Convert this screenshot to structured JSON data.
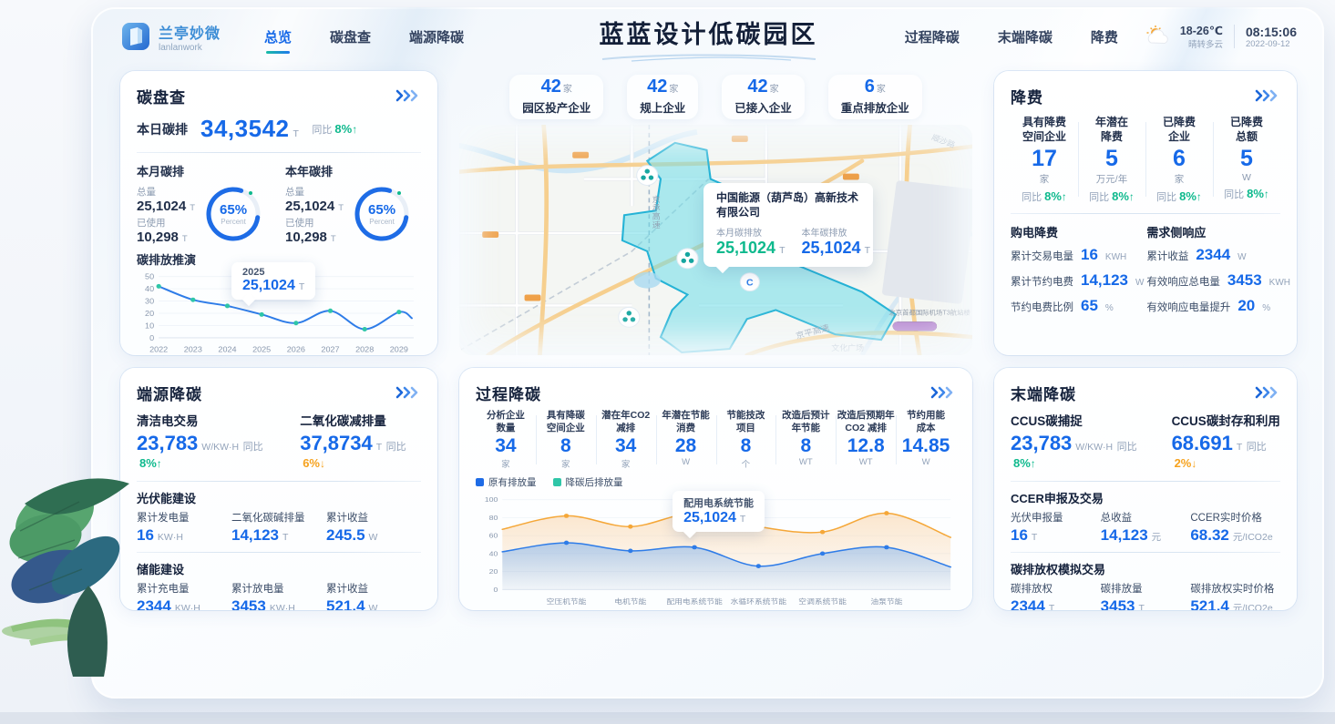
{
  "header": {
    "logo": {
      "name": "兰亭妙微",
      "subtitle": "lanlanwork"
    },
    "nav_left": [
      {
        "label": "总览",
        "active": true
      },
      {
        "label": "碳盘查",
        "active": false
      },
      {
        "label": "端源降碳",
        "active": false
      }
    ],
    "title": "蓝蓝设计低碳园区",
    "nav_right": [
      {
        "label": "过程降碳",
        "active": false
      },
      {
        "label": "末端降碳",
        "active": false
      },
      {
        "label": "降费",
        "active": false
      }
    ],
    "weather": {
      "temp": "18-26℃",
      "desc": "晴转多云",
      "time": "08:15:06",
      "date": "2022-09-12"
    }
  },
  "carbon_check": {
    "title": "碳盘查",
    "today": {
      "label": "本日碳排",
      "value": "34,3542",
      "unit": "T",
      "yoy_label": "同比",
      "yoy_value": "8%",
      "arrow": "↑"
    },
    "gauges": [
      {
        "label": "本月碳排",
        "total_label": "总量",
        "total": "25,1024",
        "total_unit": "T",
        "used_label": "已使用",
        "used": "10,298",
        "used_unit": "T",
        "percent_text": "65%",
        "percent_sub": "Percent"
      },
      {
        "label": "本年碳排",
        "total_label": "总量",
        "total": "25,1024",
        "total_unit": "T",
        "used_label": "已使用",
        "used": "10,298",
        "used_unit": "T",
        "percent_text": "65%",
        "percent_sub": "Percent"
      }
    ],
    "chart_title": "碳排放推演"
  },
  "proj_tooltip": {
    "year": "2025",
    "value": "25,1024",
    "unit": "T"
  },
  "map": {
    "stats": [
      {
        "value": "42",
        "unit": "家",
        "label": "园区投产企业"
      },
      {
        "value": "42",
        "unit": "家",
        "label": "规上企业"
      },
      {
        "value": "42",
        "unit": "家",
        "label": "已接入企业"
      },
      {
        "value": "6",
        "unit": "家",
        "label": "重点排放企业"
      }
    ],
    "tooltip": {
      "company": "中国能源（葫芦岛）高新技术有限公司",
      "month_label": "本月碳排放",
      "month_value": "25,1024",
      "month_unit": "T",
      "year_label": "本年碳排放",
      "year_value": "25,1024",
      "year_unit": "T"
    },
    "labels": {
      "road1": "京承高速",
      "road2": "京平高速",
      "place1": "文化广场",
      "road3": "顺沙路",
      "place2": "北京首都国际机场T3航站楼"
    }
  },
  "cost_reduction": {
    "title": "降费",
    "stats": [
      {
        "label1": "具有降费",
        "label2": "空间企业",
        "value": "17",
        "unit": "家",
        "yoy_label": "同比",
        "yoy_value": "8%",
        "arrow": "↑"
      },
      {
        "label1": "年潜在",
        "label2": "降费",
        "value": "5",
        "unit": "万元/年",
        "yoy_label": "同比",
        "yoy_value": "8%",
        "arrow": "↑"
      },
      {
        "label1": "已降费",
        "label2": "企业",
        "value": "6",
        "unit": "家",
        "yoy_label": "同比",
        "yoy_value": "8%",
        "arrow": "↑"
      },
      {
        "label1": "已降费",
        "label2": "总额",
        "value": "5",
        "unit": "W",
        "yoy_label": "同比",
        "yoy_value": "8%",
        "arrow": "↑"
      }
    ],
    "purchase": {
      "title": "购电降费",
      "rows": [
        {
          "label": "累计交易电量",
          "value": "16",
          "unit": "KWH"
        },
        {
          "label": "累计节约电费",
          "value": "14,123",
          "unit": "W"
        },
        {
          "label": "节约电费比例",
          "value": "65",
          "unit": "%"
        }
      ]
    },
    "demand": {
      "title": "需求侧响应",
      "rows": [
        {
          "label": "累计收益",
          "value": "2344",
          "unit": "W"
        },
        {
          "label": "有效响应总电量",
          "value": "3453",
          "unit": "KWH"
        },
        {
          "label": "有效响应电量提升",
          "value": "20",
          "unit": "%"
        }
      ]
    }
  },
  "source_reduction": {
    "title": "端源降碳",
    "highlights": [
      {
        "label": "清洁电交易",
        "value": "23,783",
        "unit": "W/KW·H",
        "yoy_label": "同比",
        "yoy_value": "8%",
        "arrow": "↑"
      },
      {
        "label": "二氧化碳减排量",
        "value": "37,8734",
        "unit": "T",
        "yoy_label": "同比",
        "yoy_value": "6%",
        "arrow": "↓"
      }
    ],
    "sections": [
      {
        "title": "光伏能建设",
        "cols": [
          {
            "label": "累计发电量",
            "value": "16",
            "unit": "KW·H"
          },
          {
            "label": "二氧化碳碱排量",
            "value": "14,123",
            "unit": "T"
          },
          {
            "label": "累计收益",
            "value": "245.5",
            "unit": "W"
          }
        ]
      },
      {
        "title": "储能建设",
        "cols": [
          {
            "label": "累计充电量",
            "value": "2344",
            "unit": "KW·H"
          },
          {
            "label": "累计放电量",
            "value": "3453",
            "unit": "KW·H"
          },
          {
            "label": "累计收益",
            "value": "521.4",
            "unit": "W"
          }
        ]
      }
    ]
  },
  "process_reduction": {
    "title": "过程降碳",
    "stats": [
      {
        "label1": "分析企业",
        "label2": "数量",
        "value": "34",
        "unit": "家"
      },
      {
        "label1": "具有降碳",
        "label2": "空间企业",
        "value": "8",
        "unit": "家"
      },
      {
        "label1": "潜在年CO2",
        "label2": "减排",
        "value": "34",
        "unit": "家"
      },
      {
        "label1": "年潜在节能",
        "label2": "消费",
        "value": "28",
        "unit": "W"
      },
      {
        "label1": "节能技改",
        "label2": "项目",
        "value": "8",
        "unit": "个"
      },
      {
        "label1": "改造后预计",
        "label2": "年节能",
        "value": "8",
        "unit": "WT"
      },
      {
        "label1": "改造后预期年",
        "label2": "CO2 减排",
        "value": "12.8",
        "unit": "WT"
      },
      {
        "label1": "节约用能",
        "label2": "成本",
        "value": "14.85",
        "unit": "W"
      }
    ],
    "tooltip": {
      "title": "配用电系统节能",
      "value": "25,1024",
      "unit": "T"
    }
  },
  "terminal_reduction": {
    "title": "末端降碳",
    "highlights": [
      {
        "label": "CCUS碳捕捉",
        "value": "23,783",
        "unit": "W/KW·H",
        "yoy_label": "同比",
        "yoy_value": "8%",
        "arrow": "↑"
      },
      {
        "label": "CCUS碳封存和利用",
        "value": "68.691",
        "unit": "T",
        "yoy_label": "同比",
        "yoy_value": "2%",
        "arrow": "↓"
      }
    ],
    "sections": [
      {
        "title": "CCER申报及交易",
        "cols": [
          {
            "label": "光伏申报量",
            "value": "16",
            "unit": "T"
          },
          {
            "label": "总收益",
            "value": "14,123",
            "unit": "元"
          },
          {
            "label": "CCER实时价格",
            "value": "68.32",
            "unit": "元/ICO2e"
          }
        ]
      },
      {
        "title": "碳排放权模拟交易",
        "cols": [
          {
            "label": "碳排放权",
            "value": "2344",
            "unit": "T"
          },
          {
            "label": "碳排放量",
            "value": "3453",
            "unit": "T"
          },
          {
            "label": "碳排放权实时价格",
            "value": "521.4",
            "unit": "元/ICO2e"
          }
        ]
      }
    ]
  },
  "chart_data": [
    {
      "id": "emission-projection",
      "type": "line",
      "title": "碳排放推演",
      "x": [
        "2022",
        "2023",
        "2024",
        "2025",
        "2026",
        "2027",
        "2028",
        "2029"
      ],
      "values": [
        42,
        31,
        26,
        19,
        12,
        22,
        7,
        21
      ],
      "tail_value": 16,
      "ylim": [
        0,
        50
      ],
      "yticks": [
        0,
        10,
        20,
        30,
        40,
        50
      ],
      "line_color": "#2e7ce8",
      "dot_color": "#2fc6a8",
      "annotation": {
        "x": "2025",
        "label": "25,1024 T"
      }
    },
    {
      "id": "process-emissions",
      "type": "area-line",
      "categories": [
        "空压机节能",
        "电机节能",
        "配用电系统节能",
        "水循环系统节能",
        "空调系统节能",
        "油泵节能"
      ],
      "series": [
        {
          "name": "原有排放量",
          "legend_color": "#1e6be6",
          "line_color": "#f5a738",
          "edge_start": 67,
          "values": [
            82,
            70,
            85,
            70,
            64,
            85
          ],
          "edge_end": 58
        },
        {
          "name": "降碳后排放量",
          "legend_color": "#2fc6a8",
          "line_color": "#2e7ce8",
          "edge_start": 42,
          "values": [
            52,
            43,
            47,
            26,
            40,
            47
          ],
          "edge_end": 25
        }
      ],
      "ylim": [
        0,
        100
      ],
      "yticks": [
        0,
        20,
        40,
        60,
        80,
        100
      ],
      "legend_position": "top-left",
      "annotation": {
        "category": "配用电系统节能",
        "label": "25,1024 T"
      }
    }
  ]
}
